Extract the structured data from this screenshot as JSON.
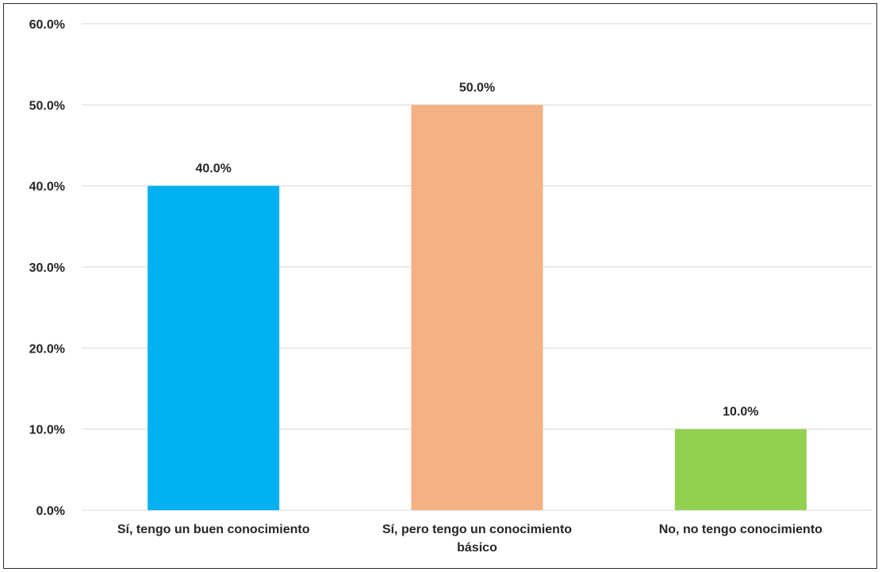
{
  "chart_data": {
    "type": "bar",
    "title": "",
    "xlabel": "",
    "ylabel": "",
    "ylim": [
      0,
      60
    ],
    "yticks": [
      0,
      10,
      20,
      30,
      40,
      50,
      60
    ],
    "ytick_labels": [
      "0.0%",
      "10.0%",
      "20.0%",
      "30.0%",
      "40.0%",
      "50.0%",
      "60.0%"
    ],
    "grid": true,
    "legend": "none",
    "categories": [
      [
        "Sí, tengo un buen conocimiento"
      ],
      [
        "Sí, pero tengo un conocimiento",
        "básico"
      ],
      [
        "No, no tengo conocimiento"
      ]
    ],
    "values": [
      40.0,
      50.0,
      10.0
    ],
    "data_labels": [
      "40.0%",
      "50.0%",
      "10.0%"
    ],
    "colors": [
      "#00b0f0",
      "#f4b183",
      "#92d050"
    ]
  }
}
